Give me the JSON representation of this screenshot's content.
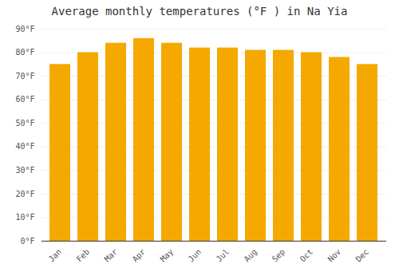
{
  "chart_data": {
    "type": "bar",
    "title": "Average monthly temperatures (°F ) in Na Yia",
    "categories": [
      "Jan",
      "Feb",
      "Mar",
      "Apr",
      "May",
      "Jun",
      "Jul",
      "Aug",
      "Sep",
      "Oct",
      "Nov",
      "Dec"
    ],
    "values": [
      75,
      80,
      84,
      86,
      84,
      82,
      82,
      81,
      81,
      80,
      78,
      75
    ],
    "color": "#F5A800",
    "ylim": [
      0,
      90
    ],
    "yticks": [
      {
        "value": 0,
        "label": "0°F"
      },
      {
        "value": 10,
        "label": "10°F"
      },
      {
        "value": 20,
        "label": "20°F"
      },
      {
        "value": 30,
        "label": "30°F"
      },
      {
        "value": 40,
        "label": "40°F"
      },
      {
        "value": 50,
        "label": "50°F"
      },
      {
        "value": 60,
        "label": "60°F"
      },
      {
        "value": 70,
        "label": "70°F"
      },
      {
        "value": 80,
        "label": "80°F"
      },
      {
        "value": 90,
        "label": "90°F"
      }
    ],
    "grid": true
  }
}
